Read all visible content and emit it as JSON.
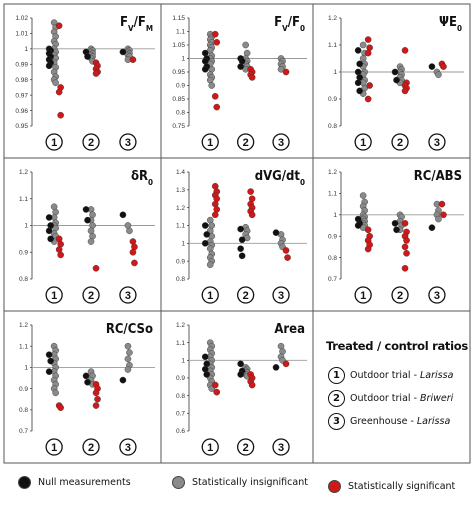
{
  "colors": {
    "null": "#111111",
    "insignificant": "#8a8a8a",
    "significant": "#d01818"
  },
  "groups": [
    "1",
    "2",
    "3"
  ],
  "legend": {
    "title": "Treated / control ratios",
    "trials": [
      {
        "num": "1",
        "name": "Outdoor trial",
        "place": "Larissa"
      },
      {
        "num": "2",
        "name": "Outdoor trial",
        "place": "Briweri"
      },
      {
        "num": "3",
        "name": "Greenhouse",
        "place": "Larissa"
      }
    ],
    "items": [
      {
        "label": "Null measurements",
        "color": "null"
      },
      {
        "label": "Statistically insignificant",
        "color": "insignificant"
      },
      {
        "label": "Statistically significant",
        "color": "significant"
      }
    ]
  },
  "chart_data": [
    {
      "type": "scatter",
      "title": "Fv/FM",
      "ylim": [
        0.95,
        1.02
      ],
      "yticks": [
        "0.95",
        "0.96",
        "0.97",
        "0.98",
        "0.99",
        "1",
        "1.01",
        "1.02"
      ],
      "groups": [
        {
          "null": [
            1.0,
            0.999,
            0.997,
            0.995,
            0.993,
            0.991,
            0.989
          ],
          "insignificant": [
            1.017,
            1.014,
            1.011,
            1.008,
            1.005,
            1.003,
            1.0,
            0.998,
            0.996,
            0.994,
            0.991,
            0.988,
            0.985,
            0.982,
            0.98,
            0.978
          ],
          "significant": [
            1.015,
            0.975,
            0.972,
            0.957
          ]
        },
        {
          "null": [
            0.998,
            0.995
          ],
          "insignificant": [
            1.0,
            0.999,
            0.998,
            0.997,
            0.996,
            0.995,
            0.994,
            0.992
          ],
          "significant": [
            0.991,
            0.989,
            0.987,
            0.985,
            0.984
          ]
        },
        {
          "null": [
            0.998
          ],
          "insignificant": [
            1.0,
            0.999,
            0.998,
            0.997,
            0.996,
            0.995,
            0.993
          ],
          "significant": [
            0.993
          ]
        }
      ]
    },
    {
      "type": "scatter",
      "title": "Fv/F0",
      "ylim": [
        0.75,
        1.15
      ],
      "yticks": [
        "0.75",
        "0.8",
        "0.85",
        "0.9",
        "0.95",
        "1",
        "1.05",
        "1.1",
        "1.15"
      ],
      "groups": [
        {
          "null": [
            1.02,
            1.0,
            0.99,
            0.97,
            0.96
          ],
          "insignificant": [
            1.09,
            1.08,
            1.07,
            1.06,
            1.05,
            1.04,
            1.03,
            1.01,
            1.0,
            0.99,
            0.98,
            0.96,
            0.94,
            0.93,
            0.92,
            0.9
          ],
          "significant": [
            1.09,
            1.06,
            0.86,
            0.82
          ]
        },
        {
          "null": [
            1.0,
            0.99,
            0.97
          ],
          "insignificant": [
            1.05,
            1.02,
            1.0,
            0.99,
            0.98,
            0.97,
            0.96
          ],
          "significant": [
            0.96,
            0.95,
            0.94,
            0.93
          ]
        },
        {
          "null": [],
          "insignificant": [
            1.0,
            0.99,
            0.98,
            0.97,
            0.96
          ],
          "significant": [
            0.95
          ]
        }
      ]
    },
    {
      "type": "scatter",
      "title": "ΨE0",
      "ylim": [
        0.8,
        1.2
      ],
      "yticks": [
        "0.8",
        "0.9",
        "1",
        "1.1",
        "1.2"
      ],
      "groups": [
        {
          "null": [
            1.08,
            1.03,
            1.0,
            0.98,
            0.96,
            0.93
          ],
          "insignificant": [
            1.1,
            1.07,
            1.05,
            1.03,
            1.02,
            1.0,
            0.99,
            0.97,
            0.96,
            0.94,
            0.92
          ],
          "significant": [
            1.12,
            1.09,
            1.07,
            0.95,
            0.9
          ]
        },
        {
          "null": [
            1.0,
            0.97
          ],
          "insignificant": [
            1.02,
            1.01,
            1.0,
            0.99,
            0.98,
            0.97,
            0.96
          ],
          "significant": [
            1.08,
            0.96,
            0.95,
            0.94,
            0.93
          ]
        },
        {
          "null": [
            1.02
          ],
          "insignificant": [
            1.0,
            0.99
          ],
          "significant": [
            1.03,
            1.02
          ]
        }
      ]
    },
    {
      "type": "scatter",
      "title": "δR0",
      "ylim": [
        0.8,
        1.2
      ],
      "yticks": [
        "0.8",
        "0.9",
        "1",
        "1.1",
        "1.2"
      ],
      "groups": [
        {
          "null": [
            1.03,
            1.0,
            0.98,
            0.95
          ],
          "insignificant": [
            1.07,
            1.05,
            1.03,
            1.01,
            1.0,
            0.99,
            0.97,
            0.96,
            0.94
          ],
          "significant": [
            0.95,
            0.93,
            0.91,
            0.89
          ]
        },
        {
          "null": [
            1.06,
            1.02
          ],
          "insignificant": [
            1.06,
            1.04,
            1.02,
            1.0,
            0.98,
            0.96,
            0.94
          ],
          "significant": [
            0.84
          ]
        },
        {
          "null": [
            1.04
          ],
          "insignificant": [
            1.0,
            0.98
          ],
          "significant": [
            0.94,
            0.92,
            0.9,
            0.86
          ]
        }
      ]
    },
    {
      "type": "scatter",
      "title": "dVG/dt0",
      "ylim": [
        0.8,
        1.4
      ],
      "yticks": [
        "0.8",
        "0.9",
        "1",
        "1.1",
        "1.2",
        "1.3",
        "1.4"
      ],
      "groups": [
        {
          "null": [
            1.1,
            1.05,
            1.0
          ],
          "insignificant": [
            1.13,
            1.1,
            1.07,
            1.04,
            1.01,
            0.99,
            0.97,
            0.94,
            0.92,
            0.9,
            0.88
          ],
          "significant": [
            1.32,
            1.29,
            1.27,
            1.25,
            1.22,
            1.19,
            1.16
          ]
        },
        {
          "null": [
            1.08,
            1.02,
            0.97,
            0.93
          ],
          "insignificant": [
            1.09,
            1.07,
            1.05,
            1.03
          ],
          "significant": [
            1.29,
            1.25,
            1.22,
            1.2,
            1.18,
            1.16
          ]
        },
        {
          "null": [
            1.06
          ],
          "insignificant": [
            1.05,
            1.02,
            1.0,
            0.98
          ],
          "significant": [
            0.96,
            0.92
          ]
        }
      ]
    },
    {
      "type": "scatter",
      "title": "RC/ABS",
      "ylim": [
        0.7,
        1.2
      ],
      "yticks": [
        "0.7",
        "0.8",
        "0.9",
        "1",
        "1.1",
        "1.2"
      ],
      "groups": [
        {
          "null": [
            0.98,
            0.96,
            0.95
          ],
          "insignificant": [
            1.09,
            1.06,
            1.04,
            1.02,
            1.0,
            0.99,
            0.98,
            0.97,
            0.96,
            0.95,
            0.94
          ],
          "significant": [
            0.93,
            0.9,
            0.88,
            0.86,
            0.84
          ]
        },
        {
          "null": [
            0.96,
            0.93
          ],
          "insignificant": [
            1.0,
            0.99,
            0.97,
            0.95,
            0.93
          ],
          "significant": [
            0.96,
            0.92,
            0.9,
            0.88,
            0.85,
            0.82,
            0.75
          ]
        },
        {
          "null": [
            0.94
          ],
          "insignificant": [
            1.05,
            1.02,
            1.0,
            0.98
          ],
          "significant": [
            1.05,
            1.0
          ]
        }
      ]
    },
    {
      "type": "scatter",
      "title": "RC/CSo",
      "ylim": [
        0.7,
        1.2
      ],
      "yticks": [
        "0.7",
        "0.8",
        "0.9",
        "1",
        "1.1",
        "1.2"
      ],
      "groups": [
        {
          "null": [
            1.06,
            1.03,
            0.98
          ],
          "insignificant": [
            1.1,
            1.08,
            1.06,
            1.04,
            1.02,
            1.0,
            0.98,
            0.96,
            0.94,
            0.92,
            0.9,
            0.88
          ],
          "significant": [
            0.82,
            0.81
          ]
        },
        {
          "null": [
            0.96,
            0.93
          ],
          "insignificant": [
            0.98,
            0.96,
            0.94,
            0.92
          ],
          "significant": [
            0.92,
            0.9,
            0.88,
            0.85,
            0.82
          ]
        },
        {
          "null": [
            0.94
          ],
          "insignificant": [
            1.1,
            1.07,
            1.04,
            1.01,
            0.99
          ],
          "significant": []
        }
      ]
    },
    {
      "type": "scatter",
      "title": "Area",
      "ylim": [
        0.6,
        1.2
      ],
      "yticks": [
        "0.6",
        "0.7",
        "0.8",
        "0.9",
        "1",
        "1.1",
        "1.2"
      ],
      "groups": [
        {
          "null": [
            1.02,
            0.98,
            0.95,
            0.92
          ],
          "insignificant": [
            1.1,
            1.08,
            1.06,
            1.04,
            1.02,
            1.0,
            0.98,
            0.96,
            0.94,
            0.92,
            0.9,
            0.88,
            0.86,
            0.84
          ],
          "significant": [
            0.86,
            0.82
          ]
        },
        {
          "null": [
            0.98,
            0.94,
            0.92
          ],
          "insignificant": [
            0.96,
            0.95,
            0.94,
            0.93,
            0.92,
            0.91
          ],
          "significant": [
            0.92,
            0.9,
            0.88,
            0.86
          ]
        },
        {
          "null": [
            0.96
          ],
          "insignificant": [
            1.08,
            1.05,
            1.02,
            1.0
          ],
          "significant": [
            0.98
          ]
        }
      ]
    }
  ]
}
